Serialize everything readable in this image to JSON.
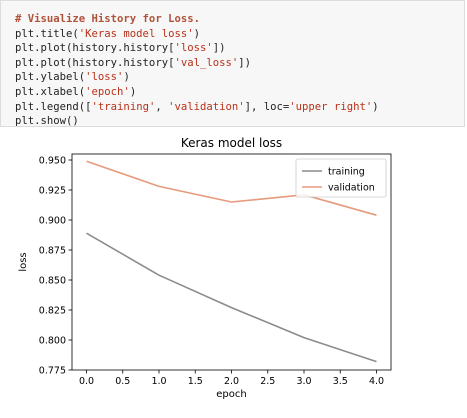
{
  "code": {
    "lines": [
      [
        {
          "t": "# Visualize History for Loss.",
          "c": "tok-comment"
        }
      ],
      [
        {
          "t": "plt.title(",
          "c": "tok-plain"
        },
        {
          "t": "'Keras model loss'",
          "c": "tok-str"
        },
        {
          "t": ")",
          "c": "tok-plain"
        }
      ],
      [
        {
          "t": "plt.plot(history.history[",
          "c": "tok-plain"
        },
        {
          "t": "'loss'",
          "c": "tok-str"
        },
        {
          "t": "])",
          "c": "tok-plain"
        }
      ],
      [
        {
          "t": "plt.plot(history.history[",
          "c": "tok-plain"
        },
        {
          "t": "'val_loss'",
          "c": "tok-str"
        },
        {
          "t": "])",
          "c": "tok-plain"
        }
      ],
      [
        {
          "t": "plt.ylabel(",
          "c": "tok-plain"
        },
        {
          "t": "'loss'",
          "c": "tok-str"
        },
        {
          "t": ")",
          "c": "tok-plain"
        }
      ],
      [
        {
          "t": "plt.xlabel(",
          "c": "tok-plain"
        },
        {
          "t": "'epoch'",
          "c": "tok-str"
        },
        {
          "t": ")",
          "c": "tok-plain"
        }
      ],
      [
        {
          "t": "plt.legend([",
          "c": "tok-plain"
        },
        {
          "t": "'training'",
          "c": "tok-str"
        },
        {
          "t": ", ",
          "c": "tok-plain"
        },
        {
          "t": "'validation'",
          "c": "tok-str"
        },
        {
          "t": "], loc=",
          "c": "tok-plain"
        },
        {
          "t": "'upper right'",
          "c": "tok-str"
        },
        {
          "t": ")",
          "c": "tok-plain"
        }
      ],
      [
        {
          "t": "plt.show()",
          "c": "tok-plain"
        }
      ]
    ]
  },
  "chart_data": {
    "type": "line",
    "title": "Keras model loss",
    "xlabel": "epoch",
    "ylabel": "loss",
    "x": [
      0,
      1,
      2,
      3,
      4
    ],
    "xlim": [
      -0.2,
      4.2
    ],
    "ylim": [
      0.775,
      0.955
    ],
    "xticks": [
      "0.0",
      "0.5",
      "1.0",
      "1.5",
      "2.0",
      "2.5",
      "3.0",
      "3.5",
      "4.0"
    ],
    "xtick_values": [
      0,
      0.5,
      1,
      1.5,
      2,
      2.5,
      3,
      3.5,
      4
    ],
    "yticks": [
      "0.775",
      "0.800",
      "0.825",
      "0.850",
      "0.875",
      "0.900",
      "0.925",
      "0.950"
    ],
    "ytick_values": [
      0.775,
      0.8,
      0.825,
      0.85,
      0.875,
      0.9,
      0.925,
      0.95
    ],
    "grid": false,
    "legend_position": "upper right",
    "series": [
      {
        "name": "training",
        "color": "#8c8c8c",
        "values": [
          0.889,
          0.854,
          0.827,
          0.802,
          0.782
        ]
      },
      {
        "name": "validation",
        "color": "#e59b7c",
        "values": [
          0.949,
          0.928,
          0.915,
          0.921,
          0.904
        ]
      }
    ]
  }
}
